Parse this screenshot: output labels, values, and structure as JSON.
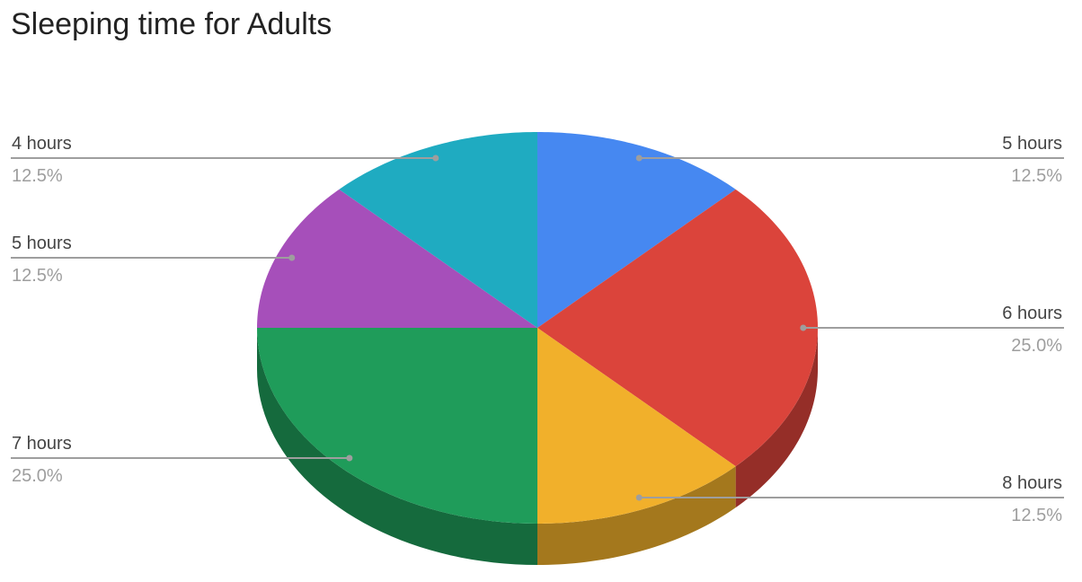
{
  "chart_data": {
    "type": "pie",
    "title": "Sleeping time for Adults",
    "three_d": true,
    "labels": [
      "5 hours",
      "6 hours",
      "8 hours",
      "7 hours",
      "5 hours",
      "4 hours"
    ],
    "values": [
      12.5,
      25.0,
      12.5,
      25.0,
      12.5,
      12.5
    ],
    "percent_labels": [
      "12.5%",
      "25.0%",
      "12.5%",
      "25.0%",
      "12.5%",
      "12.5%"
    ],
    "colors": [
      "#4688f1",
      "#db443b",
      "#f1b02b",
      "#1f9c5a",
      "#a64fba",
      "#1fabc1"
    ],
    "legend": "labels-with-leader-lines"
  }
}
